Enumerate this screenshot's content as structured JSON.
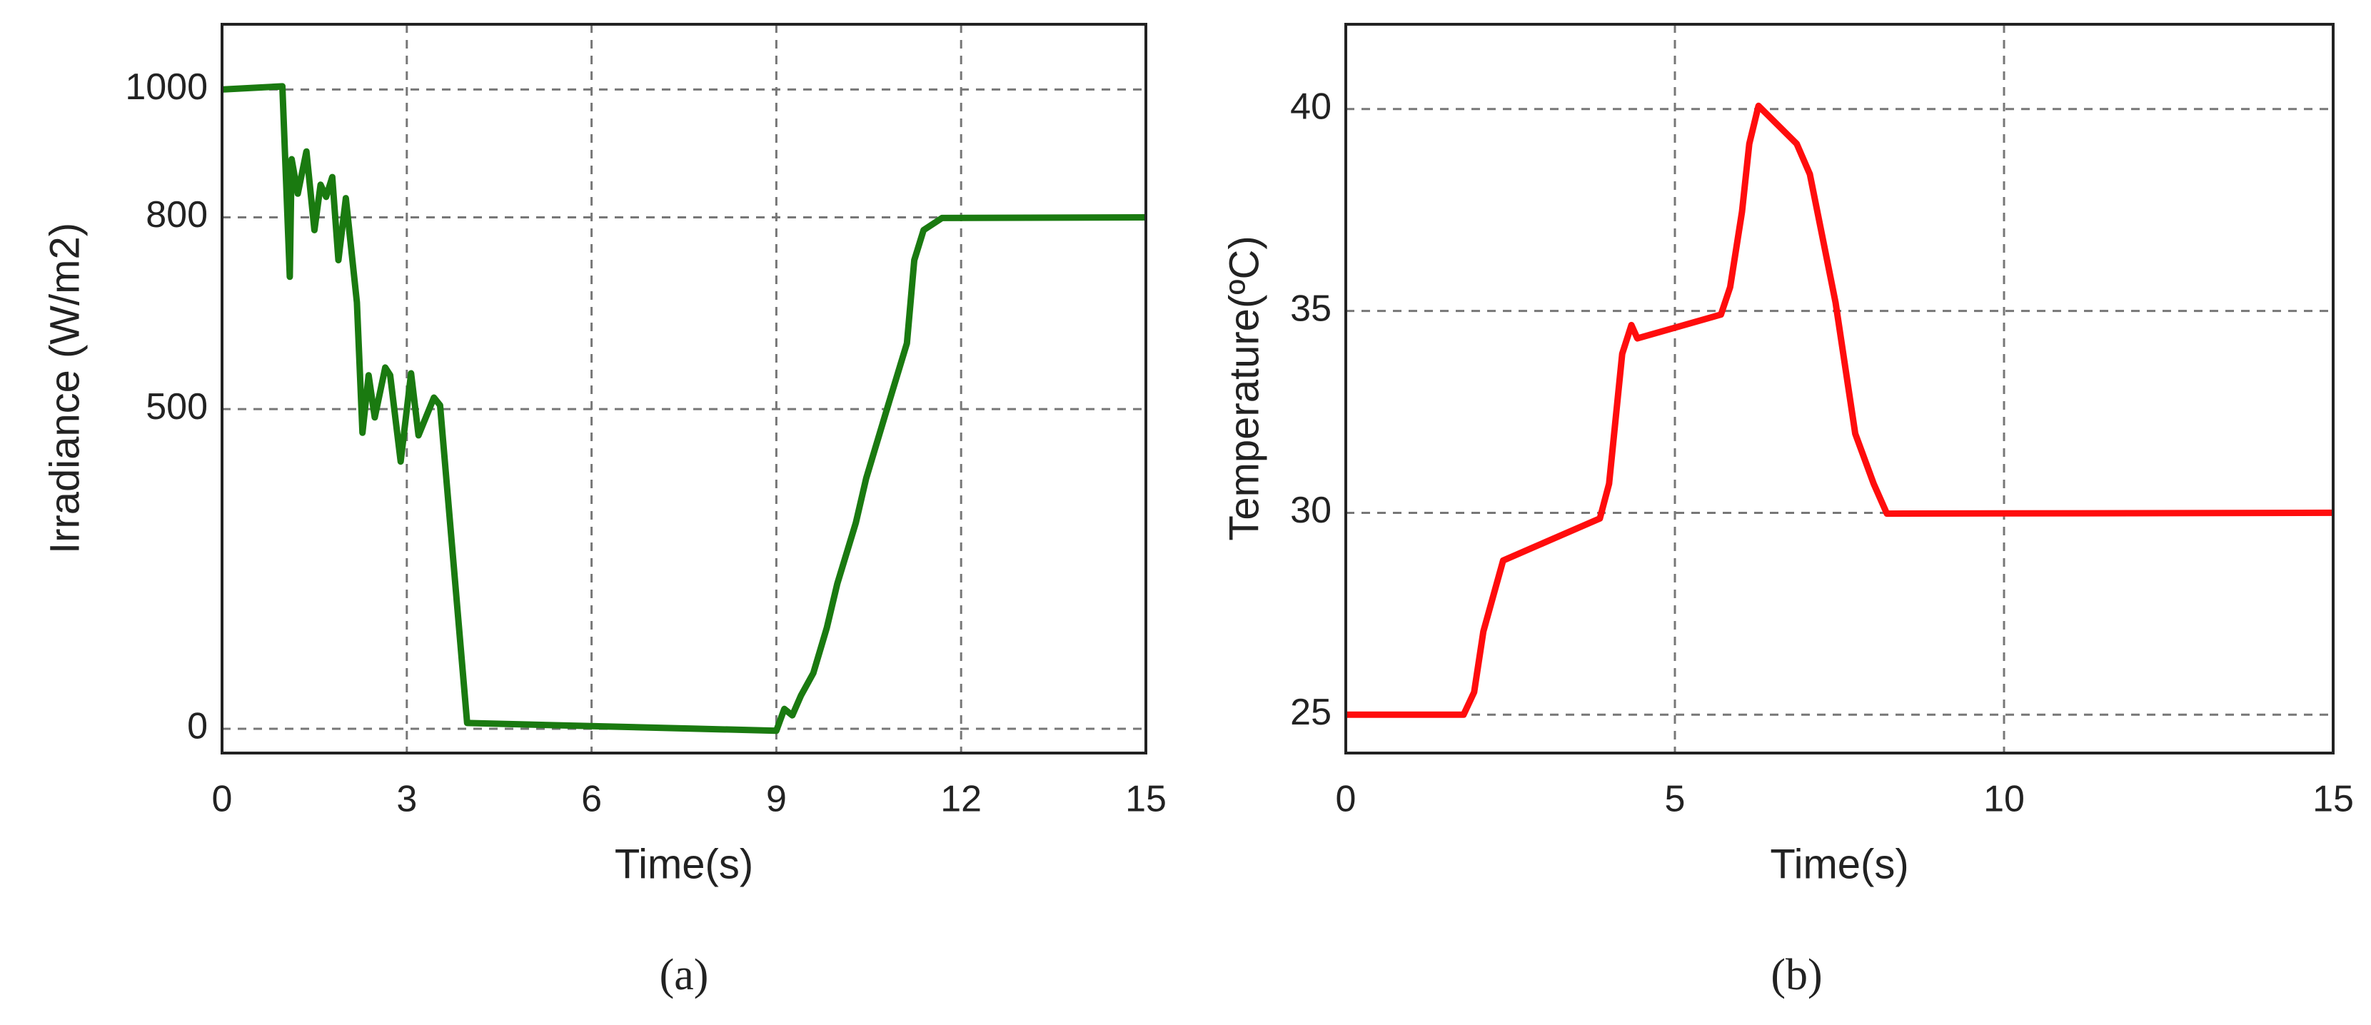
{
  "chart_data": [
    {
      "type": "line",
      "caption": "(a)",
      "xlabel": "Time(s)",
      "ylabel": "Irradiance (W/m2)",
      "xlim": [
        0,
        15
      ],
      "ylim": [
        -38,
        1102
      ],
      "xticks": [
        0,
        3,
        6,
        9,
        12,
        15
      ],
      "yticks": [
        0,
        500,
        800,
        1000
      ],
      "grid": true,
      "series": [
        {
          "color": "#1a7a10",
          "x": [
            0,
            0.98,
            1.1,
            1.13,
            1.23,
            1.37,
            1.5,
            1.6,
            1.69,
            1.79,
            1.89,
            2.01,
            2.19,
            2.28,
            2.38,
            2.48,
            2.65,
            2.73,
            2.9,
            3.07,
            3.19,
            3.44,
            3.54,
            3.98,
            9.0,
            9.13,
            9.26,
            9.4,
            9.6,
            9.82,
            9.99,
            10.29,
            10.46,
            10.83,
            11.12,
            11.24,
            11.39,
            11.69,
            15
          ],
          "values": [
            1000,
            1005,
            707,
            891,
            837,
            903,
            780,
            851,
            832,
            863,
            733,
            830,
            667,
            463,
            553,
            487,
            565,
            553,
            418,
            556,
            459,
            518,
            506,
            9,
            -3,
            31,
            21,
            52,
            87,
            158,
            227,
            322,
            392,
            511,
            603,
            733,
            780,
            799,
            800
          ]
        }
      ]
    },
    {
      "type": "line",
      "caption": "(b)",
      "xlabel": "Time(s)",
      "ylabel": "Temperature(ºC)",
      "xlim": [
        0,
        15
      ],
      "ylim": [
        24.05,
        42.1
      ],
      "xticks": [
        0,
        5,
        10,
        15
      ],
      "yticks": [
        25,
        30,
        35,
        40
      ],
      "grid": true,
      "series": [
        {
          "color": "#ff0d0d",
          "x": [
            0,
            1.79,
            1.95,
            2.09,
            2.39,
            3.86,
            4.0,
            4.2,
            4.34,
            4.43,
            5.7,
            5.84,
            6.02,
            6.13,
            6.27,
            6.85,
            7.05,
            7.44,
            7.74,
            8.02,
            8.22,
            15
          ],
          "values": [
            25,
            25,
            25.56,
            27.06,
            28.82,
            29.86,
            30.72,
            33.94,
            34.65,
            34.32,
            34.91,
            35.59,
            37.46,
            39.14,
            40.08,
            39.14,
            38.39,
            35.21,
            31.96,
            30.72,
            29.98,
            30
          ]
        }
      ]
    }
  ]
}
